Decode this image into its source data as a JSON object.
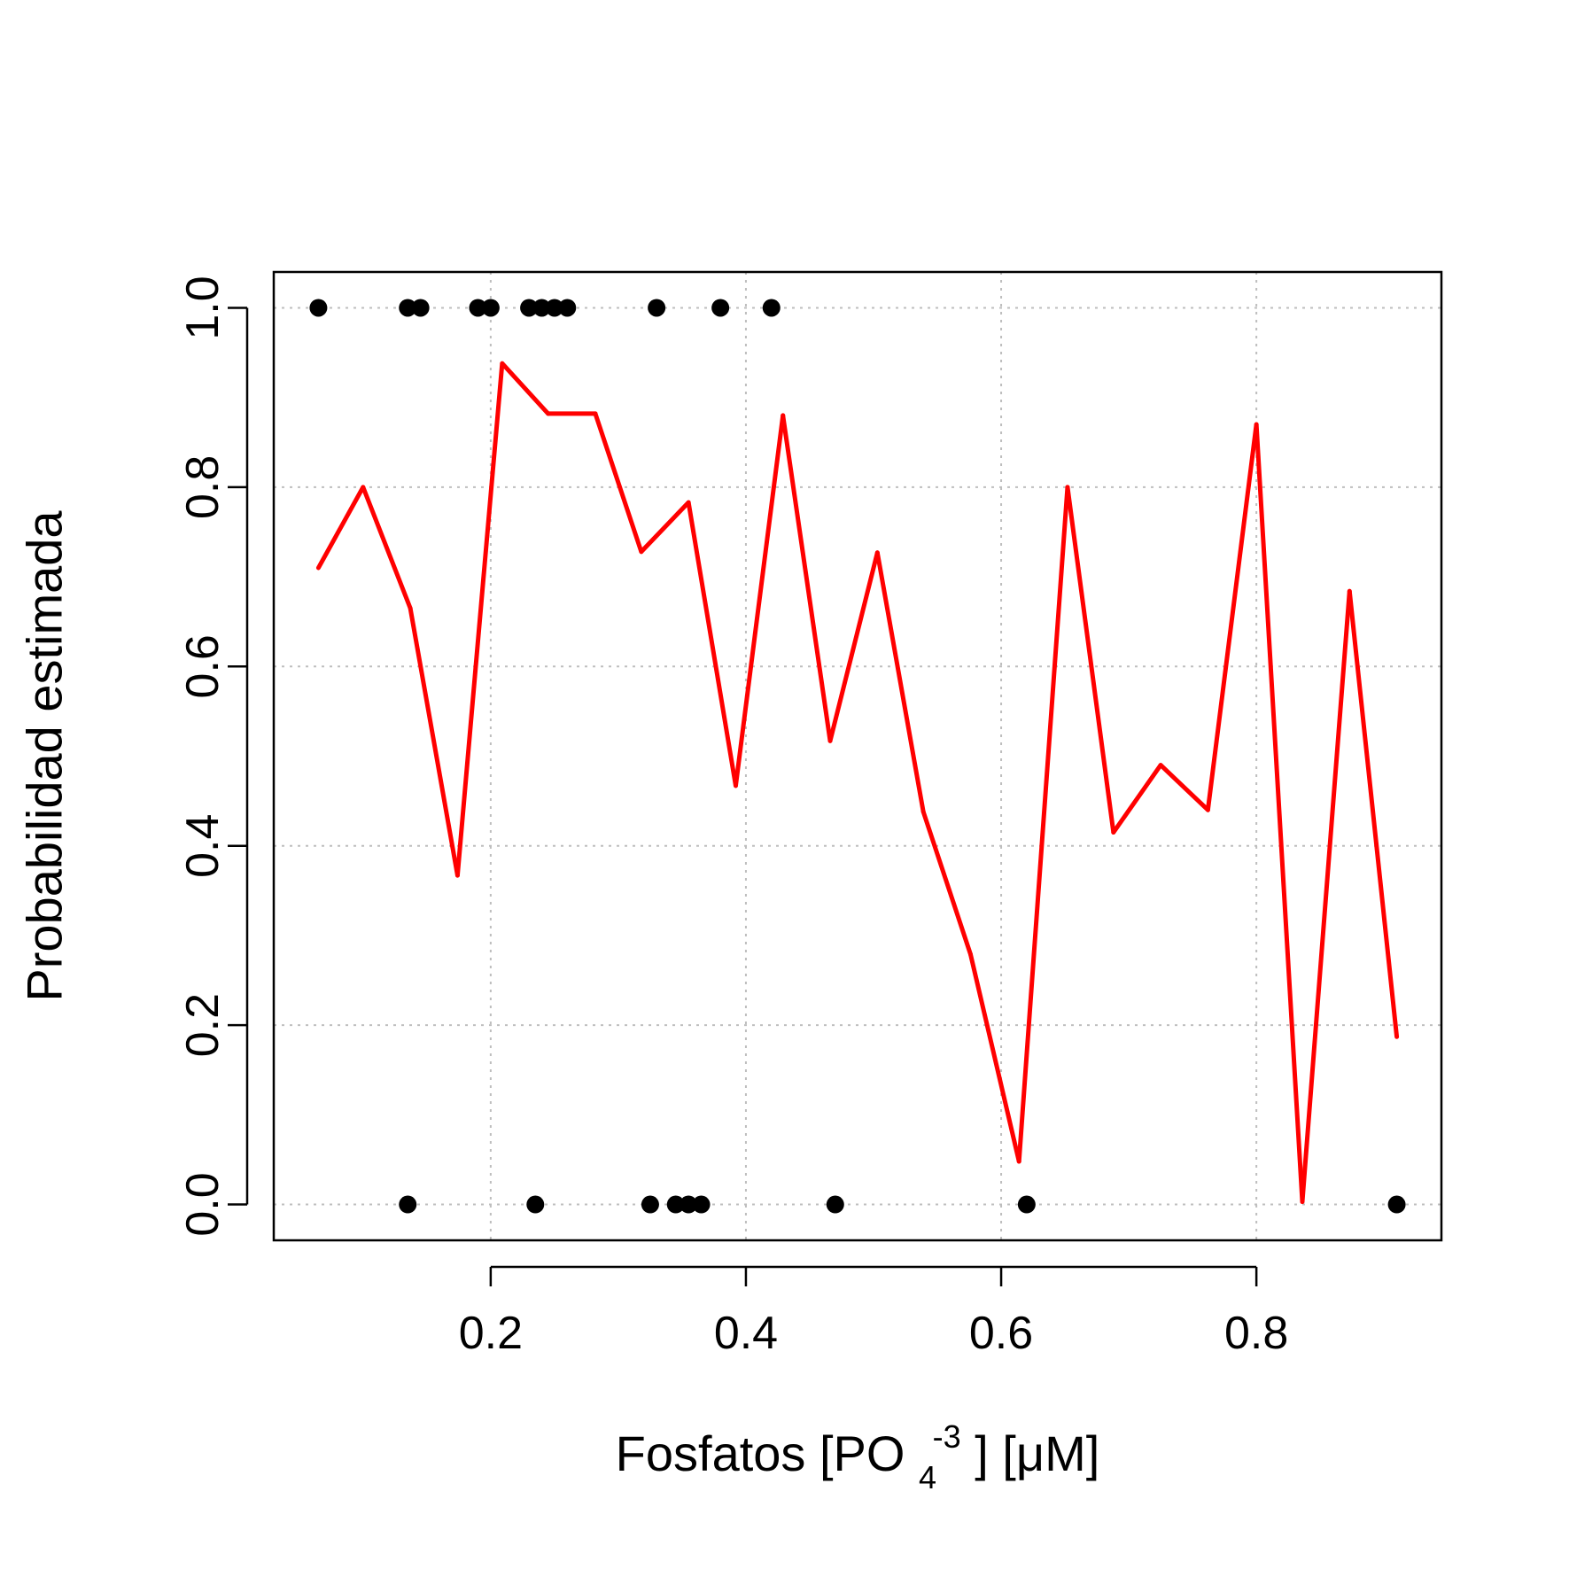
{
  "colors": {
    "line": "#ff0000",
    "points": "#000000",
    "grid": "#bebebe",
    "frame": "#000000"
  },
  "chart_data": {
    "type": "line",
    "title": "",
    "xlabel": {
      "prefix": "Fosfatos [PO",
      "subscript": "4",
      "superscript": "-3",
      "suffix": "] [μM]"
    },
    "ylabel": "Probabilidad estimada",
    "xlim": [
      0.03,
      0.945
    ],
    "ylim": [
      -0.04,
      1.04
    ],
    "xticks": [
      0.2,
      0.4,
      0.6,
      0.8
    ],
    "xtick_labels": [
      "0.2",
      "0.4",
      "0.6",
      "0.8"
    ],
    "yticks": [
      0.0,
      0.2,
      0.4,
      0.6,
      0.8,
      1.0
    ],
    "ytick_labels": [
      "0.0",
      "0.2",
      "0.4",
      "0.6",
      "0.8",
      "1.0"
    ],
    "grid": true,
    "series": [
      {
        "type": "line",
        "color": "#ff0000",
        "x": [
          0.065,
          0.1,
          0.137,
          0.174,
          0.209,
          0.245,
          0.282,
          0.318,
          0.355,
          0.392,
          0.429,
          0.466,
          0.503,
          0.539,
          0.576,
          0.614,
          0.652,
          0.688,
          0.725,
          0.762,
          0.8,
          0.836,
          0.873,
          0.91
        ],
        "y": [
          0.71,
          0.8,
          0.665,
          0.367,
          0.938,
          0.882,
          0.882,
          0.728,
          0.783,
          0.467,
          0.88,
          0.517,
          0.727,
          0.438,
          0.279,
          0.048,
          0.8,
          0.415,
          0.49,
          0.44,
          0.87,
          0.003,
          0.684,
          0.187
        ]
      },
      {
        "type": "scatter",
        "color": "#000000",
        "x": [
          0.065,
          0.135,
          0.145,
          0.19,
          0.2,
          0.23,
          0.24,
          0.25,
          0.26,
          0.33,
          0.38,
          0.42,
          0.135,
          0.235,
          0.325,
          0.345,
          0.355,
          0.365,
          0.47,
          0.62,
          0.91
        ],
        "y": [
          1,
          1,
          1,
          1,
          1,
          1,
          1,
          1,
          1,
          1,
          1,
          1,
          0,
          0,
          0,
          0,
          0,
          0,
          0,
          0,
          0
        ]
      }
    ]
  }
}
